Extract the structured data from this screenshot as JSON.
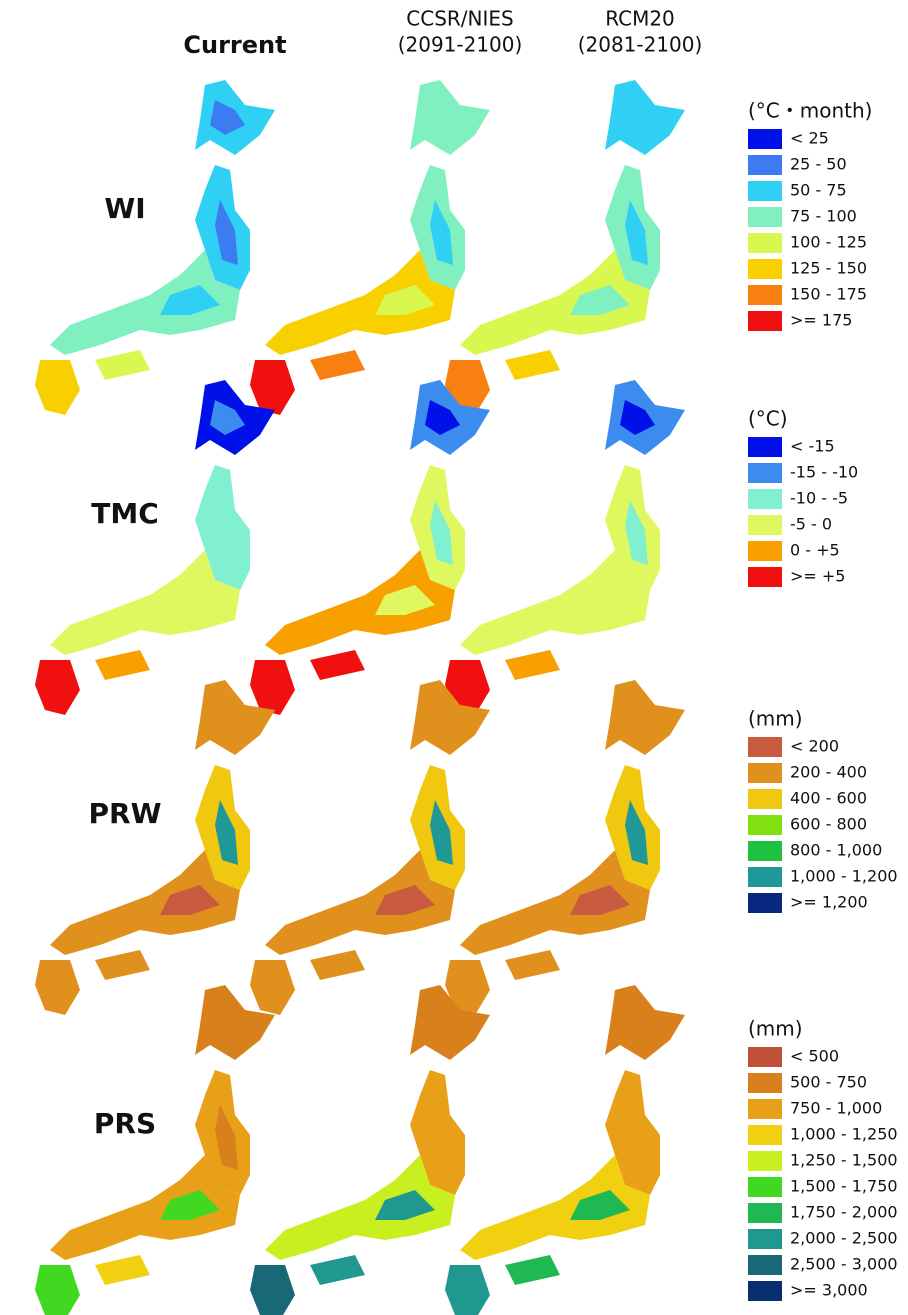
{
  "columns": [
    {
      "label": "Current"
    },
    {
      "label": "CCSR/NIES",
      "sublabel": "(2091-2100)"
    },
    {
      "label": "RCM20",
      "sublabel": "(2081-2100)"
    }
  ],
  "rows": [
    {
      "label": "WI",
      "legend": {
        "unit": "(°C・month)",
        "items": [
          {
            "color": "#0010e8",
            "label": "< 25"
          },
          {
            "color": "#3c7cf0",
            "label": "25 - 50"
          },
          {
            "color": "#30d0f4",
            "label": "50 - 75"
          },
          {
            "color": "#80f0c0",
            "label": "75 - 100"
          },
          {
            "color": "#d8f850",
            "label": "100 - 125"
          },
          {
            "color": "#f8d000",
            "label": "125 - 150"
          },
          {
            "color": "#f88010",
            "label": "150 - 175"
          },
          {
            "color": "#f01010",
            "label": ">= 175"
          }
        ]
      }
    },
    {
      "label": "TMC",
      "legend": {
        "unit": "(°C)",
        "items": [
          {
            "color": "#0010e8",
            "label": "< -15"
          },
          {
            "color": "#3c8cf0",
            "label": "-15 - -10"
          },
          {
            "color": "#80f0d0",
            "label": "-10 - -5"
          },
          {
            "color": "#e0f860",
            "label": "-5 - 0"
          },
          {
            "color": "#f8a000",
            "label": "0 - +5"
          },
          {
            "color": "#f01010",
            "label": ">= +5"
          }
        ]
      }
    },
    {
      "label": "PRW",
      "legend": {
        "unit": "(mm)",
        "items": [
          {
            "color": "#c85a40",
            "label": "< 200"
          },
          {
            "color": "#e0901c",
            "label": "200 - 400"
          },
          {
            "color": "#f0c810",
            "label": "400 - 600"
          },
          {
            "color": "#80e010",
            "label": "600 - 800"
          },
          {
            "color": "#20c040",
            "label": "800 - 1,000"
          },
          {
            "color": "#209898",
            "label": "1,000 - 1,200"
          },
          {
            "color": "#082880",
            "label": ">= 1,200"
          }
        ]
      }
    },
    {
      "label": "PRS",
      "legend": {
        "unit": "(mm)",
        "items": [
          {
            "color": "#c05038",
            "label": "< 500"
          },
          {
            "color": "#d8801c",
            "label": "500 - 750"
          },
          {
            "color": "#e8a018",
            "label": "750 - 1,000"
          },
          {
            "color": "#f0d010",
            "label": "1,000 - 1,250"
          },
          {
            "color": "#c8f020",
            "label": "1,250 - 1,500"
          },
          {
            "color": "#40d820",
            "label": "1,500 - 1,750"
          },
          {
            "color": "#20b850",
            "label": "1,750 - 2,000"
          },
          {
            "color": "#209890",
            "label": "2,000 - 2,500"
          },
          {
            "color": "#186878",
            "label": "2,500 - 3,000"
          },
          {
            "color": "#083070",
            "label": ">= 3,000"
          }
        ]
      }
    }
  ]
}
